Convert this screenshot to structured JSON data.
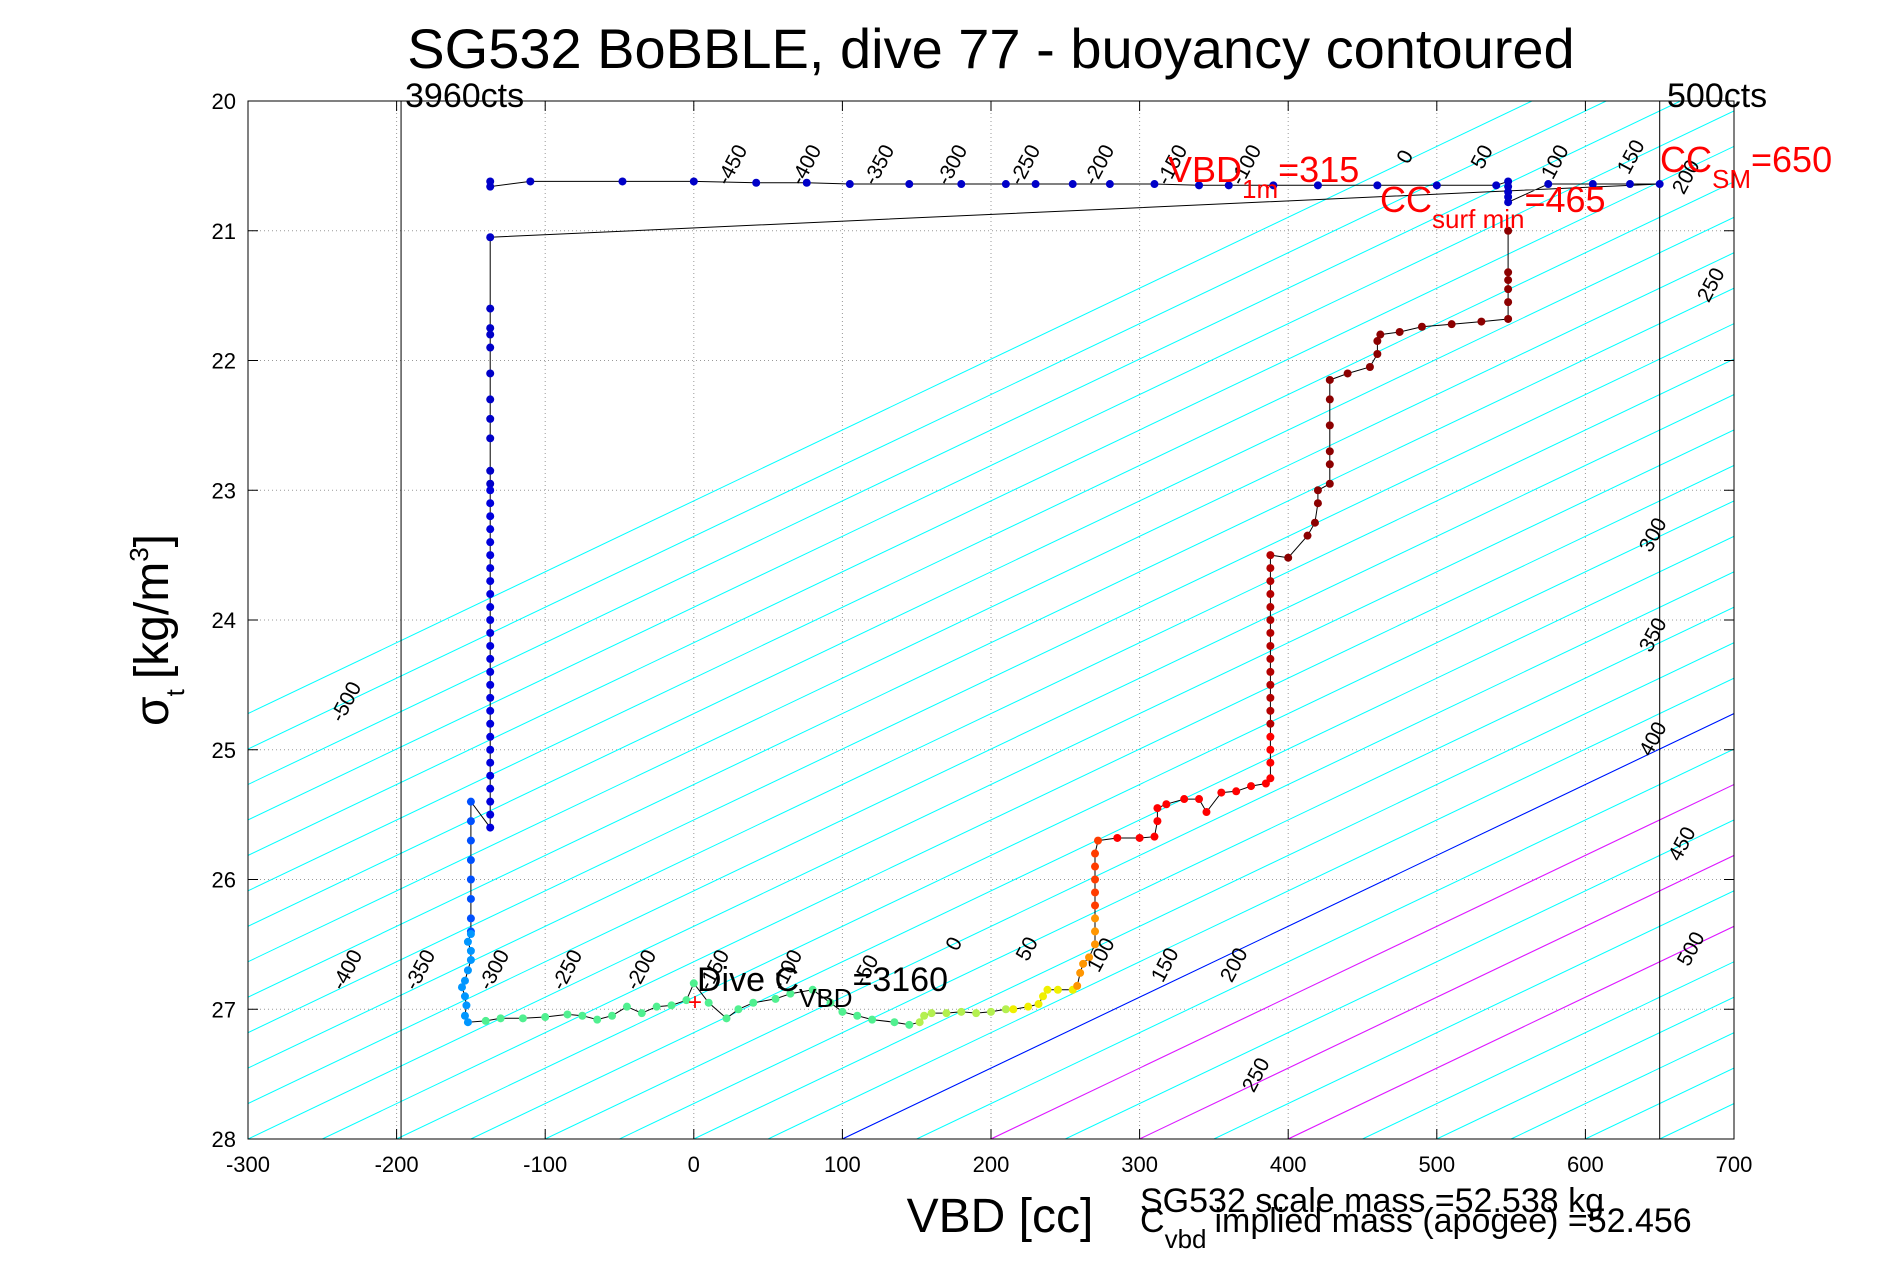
{
  "chart_data": {
    "type": "scatter",
    "title": "SG532 BoBBLE, dive 77 - buoyancy contoured",
    "xlabel": "VBD [cc]",
    "ylabel": "σ",
    "ylabel_sub": "t",
    "ylabel_unit": "[kg/m",
    "ylabel_sup": "3",
    "ylabel_close": "]",
    "xlim": [
      -300,
      700
    ],
    "ylim": [
      20,
      28
    ],
    "y_reversed": true,
    "grid": true,
    "xticks": [
      -300,
      -200,
      -100,
      0,
      100,
      200,
      300,
      400,
      500,
      600,
      700
    ],
    "yticks": [
      20,
      21,
      22,
      23,
      24,
      25,
      26,
      27,
      28
    ],
    "colors": {
      "contour": "#00ffff",
      "magenta_line": "#ff00ff",
      "blue_line": "#0000ff",
      "annotation_red": "#ff0000"
    },
    "vertical_markers": [
      {
        "x": -197,
        "label": "3960cts"
      },
      {
        "x": 650,
        "label": "500cts"
      }
    ],
    "buoyancy_contour_labels": {
      "top": [
        "-450",
        "-400",
        "-350",
        "-300",
        "-250",
        "-200",
        "-150",
        "-100",
        "0",
        "50",
        "100",
        "150",
        "200",
        "250"
      ],
      "bottom": [
        "-400",
        "-350",
        "-300",
        "-250",
        "-200",
        "-150",
        "-100",
        "-50",
        "0",
        "50",
        "100",
        "150",
        "200",
        "250"
      ],
      "left": [
        "-500"
      ],
      "right": [
        "300",
        "350",
        "400",
        "450",
        "500"
      ]
    },
    "annotations": {
      "vbd_1m": {
        "main": "VBD",
        "sub": "1m",
        "value": "=315"
      },
      "cc_surf_min": {
        "main": "CC",
        "sub": "surf min",
        "value": "=465"
      },
      "cc_sm": {
        "main": "CC",
        "sub": "SM",
        "value": "=650"
      },
      "dive_c_vbd": {
        "main": "Dive C",
        "sub": "VBD",
        "value": "=3160"
      },
      "scale_mass": "SG532 scale mass =52.538 kg",
      "implied_main": "C",
      "implied_sub": "vbd",
      "implied_rest": "implied mass (apogee) =52.456"
    },
    "series": [
      {
        "color": "#0000c8",
        "points": [
          [
            -137,
            20.62
          ],
          [
            -137,
            20.66
          ],
          [
            -110,
            20.62
          ],
          [
            -48,
            20.62
          ],
          [
            0,
            20.62
          ],
          [
            42,
            20.63
          ],
          [
            76,
            20.63
          ],
          [
            105,
            20.64
          ],
          [
            145,
            20.64
          ],
          [
            180,
            20.64
          ],
          [
            210,
            20.64
          ],
          [
            230,
            20.64
          ],
          [
            255,
            20.64
          ],
          [
            280,
            20.64
          ],
          [
            310,
            20.64
          ],
          [
            340,
            20.65
          ],
          [
            360,
            20.65
          ],
          [
            390,
            20.65
          ],
          [
            420,
            20.65
          ],
          [
            460,
            20.65
          ],
          [
            500,
            20.65
          ],
          [
            540,
            20.65
          ],
          [
            548,
            20.62
          ],
          [
            548,
            20.66
          ],
          [
            548,
            20.7
          ],
          [
            548,
            20.74
          ],
          [
            548,
            20.78
          ],
          [
            575,
            20.64
          ],
          [
            605,
            20.64
          ],
          [
            630,
            20.64
          ],
          [
            650,
            20.64
          ],
          [
            -137,
            21.05
          ],
          [
            -137,
            21.6
          ],
          [
            -137,
            21.75
          ],
          [
            -137,
            21.8
          ],
          [
            -137,
            21.9
          ],
          [
            -137,
            22.1
          ],
          [
            -137,
            22.3
          ],
          [
            -137,
            22.45
          ],
          [
            -137,
            22.6
          ],
          [
            -137,
            22.85
          ],
          [
            -137,
            22.95
          ]
        ]
      },
      {
        "color": "#0000dc",
        "points": [
          [
            -137,
            23.0
          ],
          [
            -137,
            23.1
          ],
          [
            -137,
            23.2
          ],
          [
            -137,
            23.3
          ],
          [
            -137,
            23.4
          ],
          [
            -137,
            23.5
          ],
          [
            -137,
            23.6
          ],
          [
            -137,
            23.7
          ],
          [
            -137,
            23.8
          ],
          [
            -137,
            23.9
          ],
          [
            -137,
            24.0
          ],
          [
            -137,
            24.1
          ],
          [
            -137,
            24.2
          ],
          [
            -137,
            24.3
          ],
          [
            -137,
            24.4
          ],
          [
            -137,
            24.5
          ],
          [
            -137,
            24.6
          ],
          [
            -137,
            24.7
          ],
          [
            -137,
            24.8
          ],
          [
            -137,
            24.9
          ],
          [
            -137,
            25.0
          ],
          [
            -137,
            25.1
          ],
          [
            -137,
            25.2
          ],
          [
            -137,
            25.3
          ],
          [
            -137,
            25.4
          ],
          [
            -137,
            25.5
          ],
          [
            -137,
            25.6
          ]
        ]
      },
      {
        "color": "#0050ff",
        "points": [
          [
            -150,
            25.4
          ],
          [
            -150,
            25.55
          ],
          [
            -150,
            25.7
          ],
          [
            -150,
            25.85
          ],
          [
            -150,
            26.0
          ],
          [
            -150,
            26.15
          ],
          [
            -150,
            26.3
          ],
          [
            -150,
            26.4
          ]
        ]
      },
      {
        "color": "#0096ff",
        "points": [
          [
            -150,
            26.42
          ],
          [
            -152,
            26.48
          ],
          [
            -150,
            26.55
          ],
          [
            -150,
            26.62
          ],
          [
            -152,
            26.7
          ],
          [
            -154,
            26.78
          ],
          [
            -156,
            26.83
          ],
          [
            -154,
            26.9
          ],
          [
            -153,
            26.97
          ],
          [
            -154,
            27.05
          ],
          [
            -152,
            27.1
          ]
        ]
      },
      {
        "color": "#50f090",
        "points": [
          [
            -140,
            27.09
          ],
          [
            -130,
            27.07
          ],
          [
            -115,
            27.07
          ],
          [
            -100,
            27.06
          ],
          [
            -85,
            27.04
          ],
          [
            -75,
            27.05
          ],
          [
            -65,
            27.08
          ],
          [
            -55,
            27.05
          ],
          [
            -45,
            26.98
          ],
          [
            -35,
            27.03
          ],
          [
            -25,
            26.98
          ],
          [
            -15,
            26.97
          ],
          [
            -5,
            26.93
          ],
          [
            0,
            26.8
          ],
          [
            10,
            26.95
          ],
          [
            22,
            27.07
          ],
          [
            30,
            27.0
          ],
          [
            40,
            26.95
          ],
          [
            55,
            26.92
          ],
          [
            65,
            26.88
          ],
          [
            80,
            26.85
          ],
          [
            92,
            26.95
          ],
          [
            100,
            27.02
          ],
          [
            110,
            27.05
          ],
          [
            120,
            27.08
          ],
          [
            135,
            27.1
          ],
          [
            145,
            27.12
          ]
        ]
      },
      {
        "color": "#b4f050",
        "points": [
          [
            152,
            27.1
          ],
          [
            155,
            27.05
          ],
          [
            160,
            27.03
          ],
          [
            170,
            27.03
          ],
          [
            180,
            27.02
          ],
          [
            190,
            27.03
          ],
          [
            200,
            27.02
          ],
          [
            210,
            27.0
          ]
        ]
      },
      {
        "color": "#f0f000",
        "points": [
          [
            215,
            27.0
          ],
          [
            225,
            26.98
          ],
          [
            232,
            26.96
          ],
          [
            235,
            26.9
          ],
          [
            238,
            26.85
          ],
          [
            245,
            26.85
          ],
          [
            255,
            26.85
          ]
        ]
      },
      {
        "color": "#ff9600",
        "points": [
          [
            258,
            26.82
          ],
          [
            260,
            26.72
          ],
          [
            262,
            26.65
          ],
          [
            266,
            26.6
          ],
          [
            270,
            26.5
          ],
          [
            270,
            26.4
          ],
          [
            270,
            26.3
          ]
        ]
      },
      {
        "color": "#ff3c00",
        "points": [
          [
            270,
            26.2
          ],
          [
            270,
            26.1
          ],
          [
            270,
            26.0
          ],
          [
            270,
            25.9
          ],
          [
            270,
            25.8
          ],
          [
            272,
            25.7
          ]
        ]
      },
      {
        "color": "#ff0000",
        "points": [
          [
            285,
            25.68
          ],
          [
            300,
            25.68
          ],
          [
            310,
            25.67
          ],
          [
            312,
            25.55
          ],
          [
            312,
            25.45
          ],
          [
            318,
            25.42
          ],
          [
            330,
            25.38
          ],
          [
            340,
            25.38
          ],
          [
            345,
            25.48
          ],
          [
            355,
            25.33
          ],
          [
            365,
            25.32
          ],
          [
            375,
            25.28
          ],
          [
            385,
            25.26
          ],
          [
            388,
            25.22
          ],
          [
            388,
            25.1
          ],
          [
            388,
            25.0
          ],
          [
            388,
            24.9
          ]
        ]
      },
      {
        "color": "#b40000",
        "points": [
          [
            388,
            24.8
          ],
          [
            388,
            24.7
          ],
          [
            388,
            24.6
          ],
          [
            388,
            24.5
          ],
          [
            388,
            24.4
          ],
          [
            388,
            24.3
          ],
          [
            388,
            24.2
          ],
          [
            388,
            24.1
          ],
          [
            388,
            24.0
          ],
          [
            388,
            23.9
          ],
          [
            388,
            23.8
          ],
          [
            388,
            23.7
          ],
          [
            388,
            23.6
          ],
          [
            388,
            23.5
          ]
        ]
      },
      {
        "color": "#8c0000",
        "points": [
          [
            400,
            23.52
          ],
          [
            413,
            23.35
          ],
          [
            418,
            23.25
          ],
          [
            420,
            23.1
          ],
          [
            420,
            23.0
          ],
          [
            428,
            22.95
          ],
          [
            428,
            22.8
          ],
          [
            428,
            22.7
          ],
          [
            428,
            22.5
          ],
          [
            428,
            22.3
          ],
          [
            428,
            22.15
          ],
          [
            440,
            22.1
          ],
          [
            455,
            22.05
          ],
          [
            460,
            21.95
          ],
          [
            460,
            21.85
          ],
          [
            462,
            21.8
          ],
          [
            475,
            21.78
          ],
          [
            490,
            21.74
          ],
          [
            510,
            21.72
          ],
          [
            530,
            21.7
          ],
          [
            548,
            21.68
          ],
          [
            548,
            21.55
          ],
          [
            548,
            21.45
          ],
          [
            548,
            21.38
          ],
          [
            548,
            21.32
          ],
          [
            548,
            21.0
          ]
        ]
      }
    ]
  }
}
